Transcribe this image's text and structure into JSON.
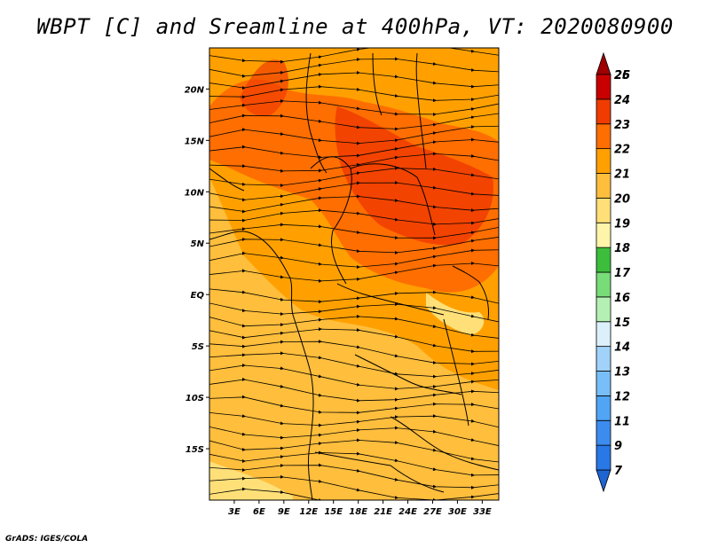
{
  "title": "WBPT [C] and Sreamline at 400hPa, VT: 2020080900",
  "credit": "GrADS: IGES/COLA",
  "map": {
    "lon_range": [
      0,
      35
    ],
    "lat_range": [
      -20,
      24
    ],
    "lon_ticks": [
      {
        "value": 3,
        "label": "3E"
      },
      {
        "value": 6,
        "label": "6E"
      },
      {
        "value": 9,
        "label": "9E"
      },
      {
        "value": 12,
        "label": "12E"
      },
      {
        "value": 15,
        "label": "15E"
      },
      {
        "value": 18,
        "label": "18E"
      },
      {
        "value": 21,
        "label": "21E"
      },
      {
        "value": 24,
        "label": "24E"
      },
      {
        "value": 27,
        "label": "27E"
      },
      {
        "value": 30,
        "label": "30E"
      },
      {
        "value": 33,
        "label": "33E"
      }
    ],
    "lat_ticks": [
      {
        "value": 20,
        "label": "20N"
      },
      {
        "value": 15,
        "label": "15N"
      },
      {
        "value": 10,
        "label": "10N"
      },
      {
        "value": 5,
        "label": "5N"
      },
      {
        "value": 0,
        "label": "EQ"
      },
      {
        "value": -5,
        "label": "5S"
      },
      {
        "value": -10,
        "label": "10S"
      },
      {
        "value": -15,
        "label": "15S"
      }
    ]
  },
  "colorbar": {
    "levels": [
      {
        "label": "7",
        "color": "#1e64d2"
      },
      {
        "label": "9",
        "color": "#2878e6"
      },
      {
        "label": "11",
        "color": "#3c8cf0"
      },
      {
        "label": "12",
        "color": "#50a5f5"
      },
      {
        "label": "13",
        "color": "#78bef8"
      },
      {
        "label": "14",
        "color": "#a0d2fa"
      },
      {
        "label": "15",
        "color": "#dcf0fc"
      },
      {
        "label": "16",
        "color": "#b4f0b4"
      },
      {
        "label": "17",
        "color": "#78dc78"
      },
      {
        "label": "18",
        "color": "#3cbe3c"
      },
      {
        "label": "19",
        "color": "#fff5aa"
      },
      {
        "label": "20",
        "color": "#ffe078"
      },
      {
        "label": "21",
        "color": "#ffbe3c"
      },
      {
        "label": "22",
        "color": "#ffa000"
      },
      {
        "label": "23",
        "color": "#ff6e00"
      },
      {
        "label": "24",
        "color": "#f03c00"
      },
      {
        "label": "25",
        "color": "#c80000"
      },
      {
        "label": "26",
        "color": "#a00000"
      }
    ]
  }
}
